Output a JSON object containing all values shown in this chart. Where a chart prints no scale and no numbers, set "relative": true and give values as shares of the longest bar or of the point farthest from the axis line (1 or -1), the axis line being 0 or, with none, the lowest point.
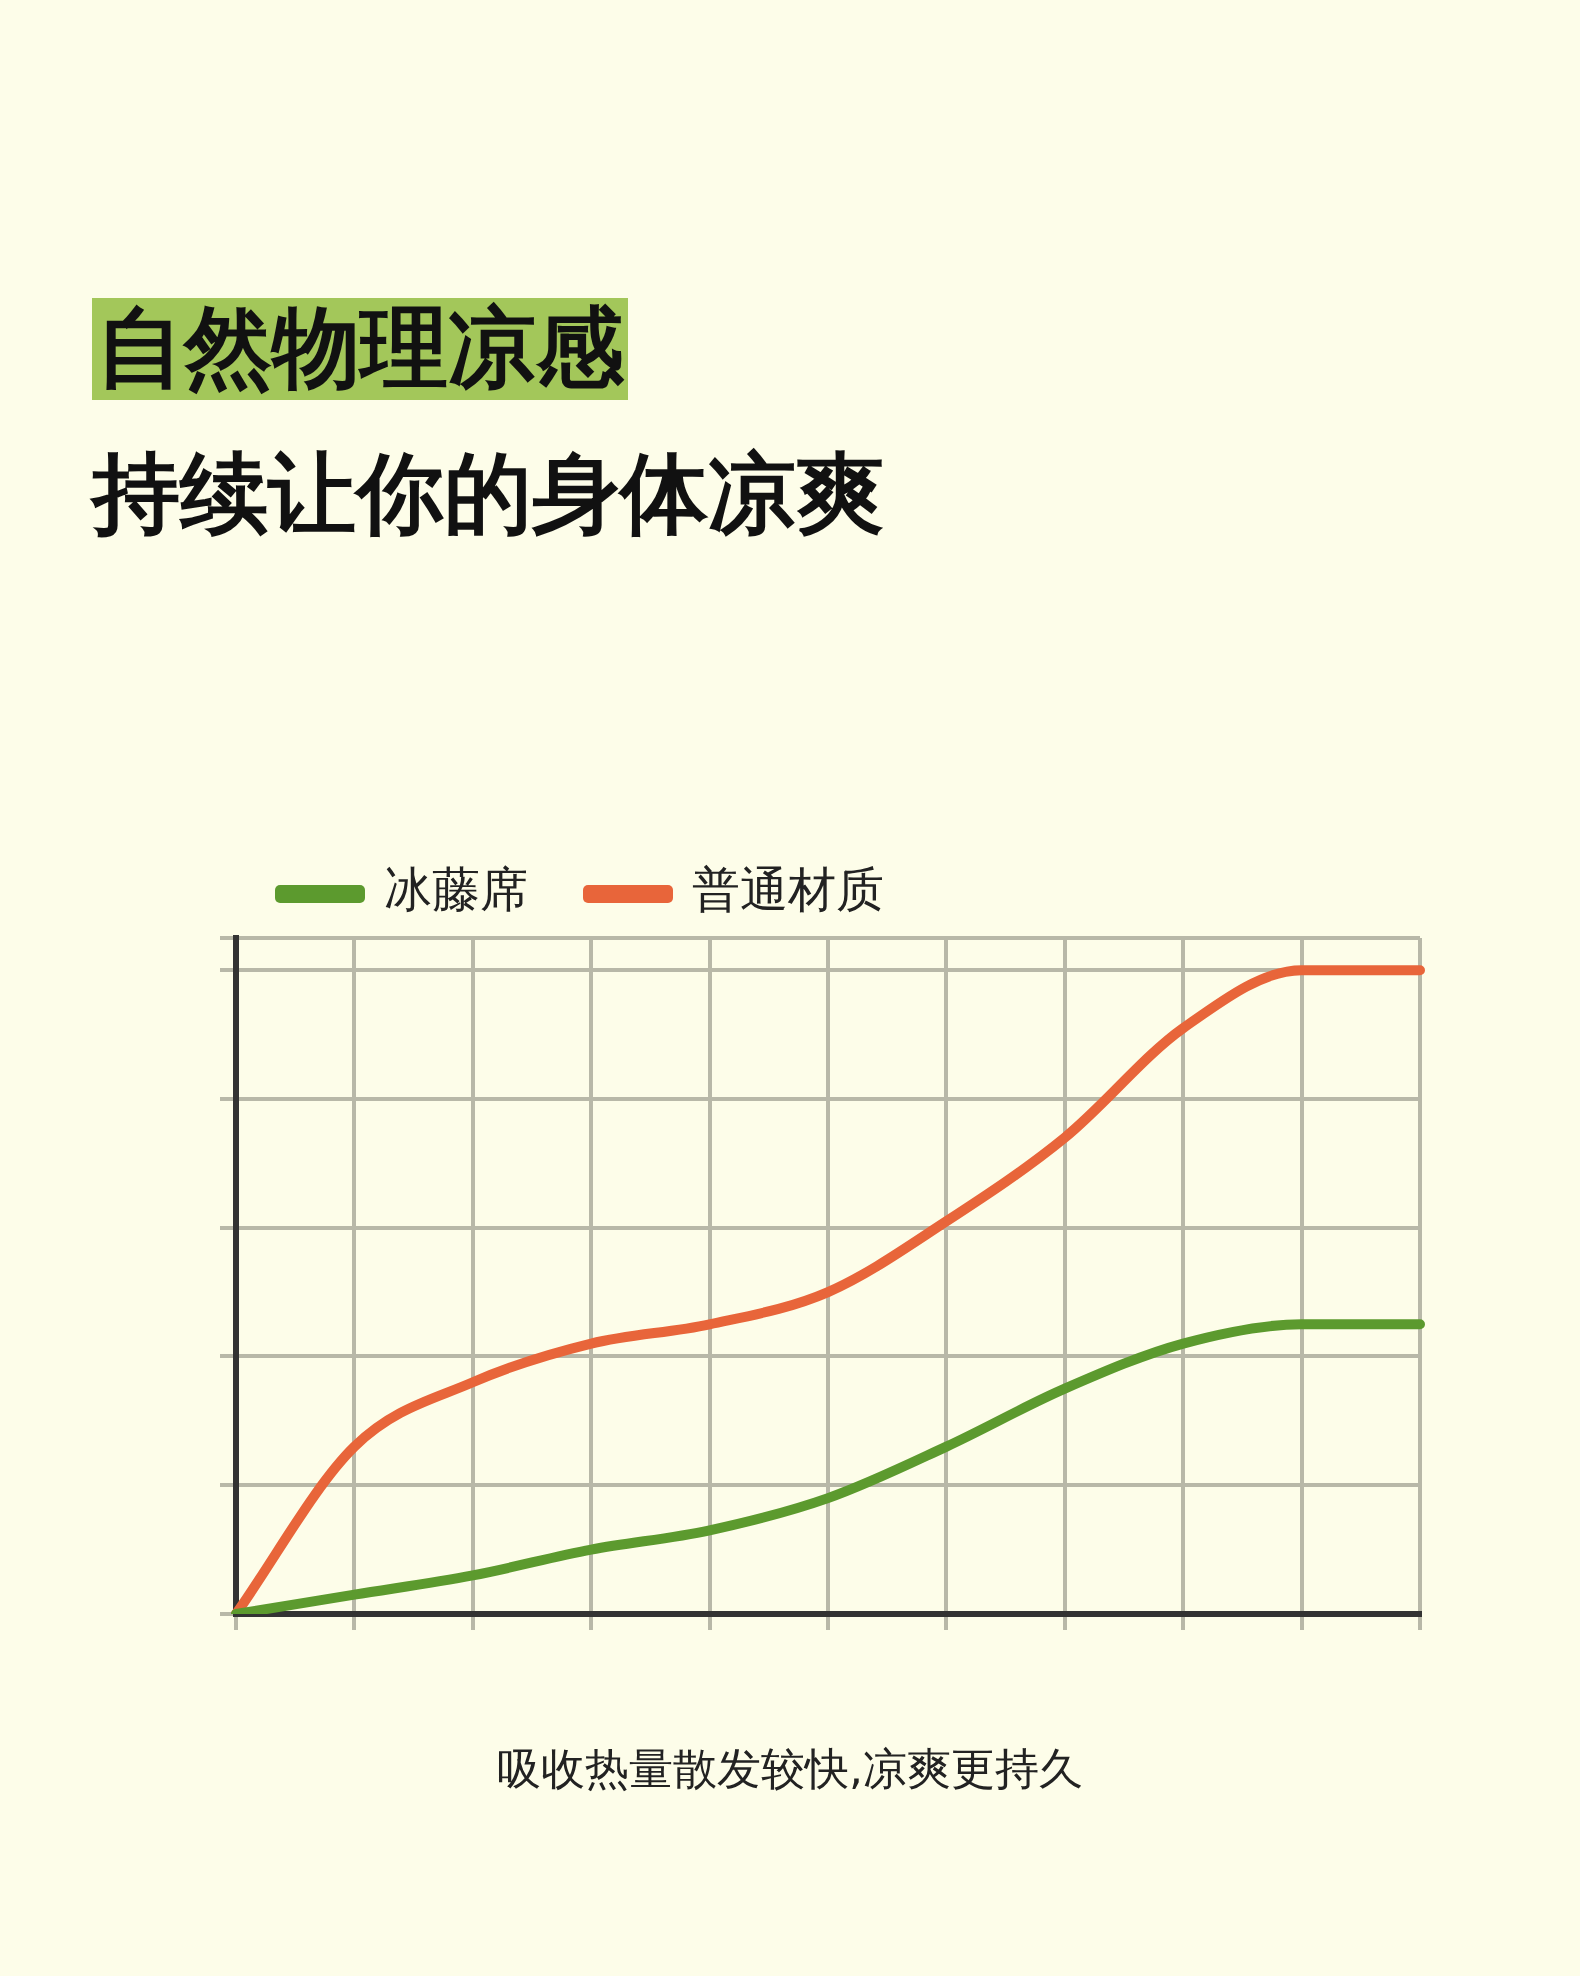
{
  "chart_data": {
    "type": "line",
    "title": "自然物理凉感",
    "subtitle": "持续让你的身体凉爽",
    "annotations": [
      "吸收热量散发较快,凉爽更持久"
    ],
    "relative": true,
    "categories": [
      null,
      null,
      null,
      null,
      null,
      null,
      null,
      null,
      null,
      null,
      null
    ],
    "series": [
      {
        "name": "冰藤席",
        "color": "#5c9a2e",
        "values": [
          0,
          0.03,
          0.06,
          0.1,
          0.13,
          0.18,
          0.26,
          0.35,
          0.42,
          0.45,
          0.45
        ]
      },
      {
        "name": "普通材质",
        "color": "#e8653a",
        "values": [
          0,
          0.26,
          0.36,
          0.42,
          0.45,
          0.5,
          0.61,
          0.74,
          0.91,
          1,
          1
        ]
      }
    ],
    "grid": true,
    "legend": "top left",
    "marker": "none",
    "line_style": "solid"
  }
}
